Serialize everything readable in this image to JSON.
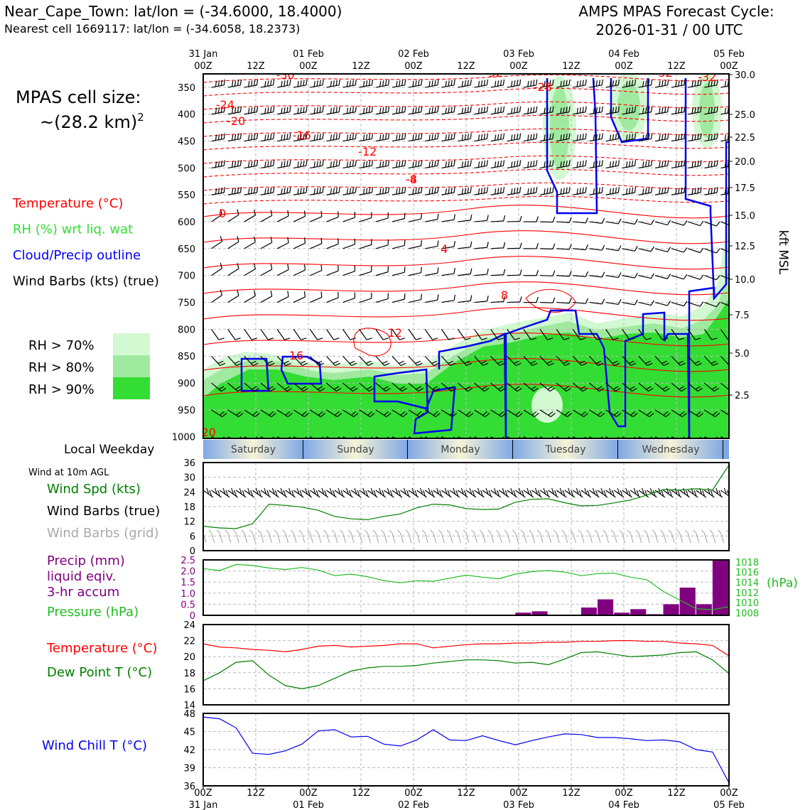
{
  "header": {
    "location": "Near_Cape_Town: lat/lon = (-34.6000, 18.4000)",
    "nearest_cell": "Nearest cell 1669117: lat/lon = (-34.6058, 18.2373)",
    "model_line1": "AMPS MPAS Forecast Cycle:",
    "model_line2": "2026-01-31 / 00 UTC"
  },
  "left_panel": {
    "cell_size_label": "MPAS cell size:",
    "cell_size_value": "~(28.2 km)",
    "cell_size_exp": "2",
    "legend": [
      {
        "text": "Temperature (°C)",
        "color": "#ff0000"
      },
      {
        "text": "RH (%) wrt liq. wat",
        "color": "#33dd33"
      },
      {
        "text": "Cloud/Precip outline",
        "color": "#0000ff"
      },
      {
        "text": "Wind Barbs (kts) (true)",
        "color": "#000000"
      }
    ],
    "rh_levels": [
      {
        "text": "RH > 70%",
        "color": "#d2f9d2"
      },
      {
        "text": "RH > 80%",
        "color": "#a0eaa0"
      },
      {
        "text": "RH > 90%",
        "color": "#33dd33"
      }
    ]
  },
  "time_axis": {
    "ticks": [
      "00Z",
      "12Z",
      "00Z",
      "12Z",
      "00Z",
      "12Z",
      "00Z",
      "12Z",
      "00Z",
      "12Z",
      "00Z"
    ],
    "dates": [
      "31 Jan",
      "01 Feb",
      "02 Feb",
      "03 Feb",
      "04 Feb",
      "05 Feb"
    ]
  },
  "weekday_strip": {
    "label": "Local Weekday",
    "days": [
      "Saturday",
      "Sunday",
      "Monday",
      "Tuesday",
      "Wednesday"
    ]
  },
  "wind_panel": {
    "caption": "Wind at 10m AGL",
    "labels": [
      {
        "text": "Wind Spd (kts)",
        "color": "#008000"
      },
      {
        "text": "Wind Barbs (true)",
        "color": "#000000"
      },
      {
        "text": "Wind Barbs (grid)",
        "color": "#aaaaaa"
      }
    ]
  },
  "precip_panel": {
    "labels": [
      {
        "text": "Precip (mm)",
        "color": "#800080"
      },
      {
        "text": "liquid eqiv.",
        "color": "#800080"
      },
      {
        "text": "3-hr accum",
        "color": "#800080"
      },
      {
        "text": "Pressure (hPa)",
        "color": "#22bb22"
      }
    ],
    "right_unit": "(hPa)"
  },
  "temp_panel": {
    "labels": [
      {
        "text": "Temperature (°C)",
        "color": "#ff0000"
      },
      {
        "text": "Dew Point T (°C)",
        "color": "#008000"
      }
    ]
  },
  "windchill_panel": {
    "labels": [
      {
        "text": "Wind Chill T (°C)",
        "color": "#0000ee"
      }
    ]
  },
  "chart_data": [
    {
      "type": "heatmap",
      "name": "vertical cross-section",
      "x_range_hours": [
        0,
        96
      ],
      "y_left_ticks": [
        350,
        400,
        450,
        500,
        550,
        600,
        650,
        700,
        750,
        800,
        850,
        900,
        950,
        1000
      ],
      "y_right_ticks": [
        30.0,
        25.0,
        22.5,
        20.0,
        17.5,
        15.0,
        12.5,
        10.0,
        7.5,
        5.0,
        2.5
      ],
      "y_right_label": "kft MSL",
      "temperature_contour_labels": [
        {
          "t": 15,
          "p": 105,
          "v": "-30"
        },
        {
          "t": 53,
          "p": 102,
          "v": "-32"
        },
        {
          "t": 84,
          "p": 102,
          "v": "-32"
        },
        {
          "t": 92,
          "p": 108,
          "v": "-32"
        },
        {
          "t": 62,
          "p": 122,
          "v": "-28"
        },
        {
          "t": 4,
          "p": 147,
          "v": "-24"
        },
        {
          "t": 6,
          "p": 170,
          "v": "-20"
        },
        {
          "t": 18,
          "p": 190,
          "v": "-16"
        },
        {
          "t": 30,
          "p": 213,
          "v": "-12"
        },
        {
          "t": 38,
          "p": 252,
          "v": "-8"
        },
        {
          "t": 38,
          "p": 252,
          "v": "-4"
        },
        {
          "t": 3.5,
          "p": 300,
          "v": "0"
        },
        {
          "t": 44,
          "p": 350,
          "v": "4"
        },
        {
          "t": 55,
          "p": 415,
          "v": "8"
        },
        {
          "t": 35,
          "p": 468,
          "v": "12"
        },
        {
          "t": 17,
          "p": 500,
          "v": "16"
        },
        {
          "t": 1,
          "p": 608,
          "v": "20"
        }
      ]
    },
    {
      "type": "line",
      "name": "wind speed 10m",
      "ylim": [
        0,
        36
      ],
      "yticks": [
        0,
        6,
        12,
        18,
        24,
        30,
        36
      ],
      "x": [
        0,
        3,
        6,
        9,
        12,
        15,
        18,
        21,
        24,
        27,
        30,
        33,
        36,
        39,
        42,
        45,
        48,
        51,
        54,
        57,
        60,
        63,
        66,
        69,
        72,
        75,
        78,
        81,
        84,
        87,
        90,
        93,
        96
      ],
      "values": [
        10,
        9.3,
        9,
        11,
        19,
        18.5,
        17.8,
        16.5,
        14,
        13,
        12.7,
        14,
        15,
        17.5,
        19,
        18.7,
        17.2,
        16.8,
        17,
        19.8,
        21,
        21.2,
        19.6,
        18.3,
        18.5,
        19.5,
        20.7,
        22.7,
        25,
        24.8,
        25.3,
        24.8,
        35
      ]
    },
    {
      "type": "bar",
      "name": "precipitation 3-hr accum",
      "ylim": [
        0,
        2.5
      ],
      "yticks": [
        0,
        0.5,
        1.0,
        1.5,
        2.0,
        2.5
      ],
      "y_right_ticks": [
        1008,
        1010,
        1012,
        1014,
        1016,
        1018
      ],
      "bar_start_hours": [
        57,
        60,
        69,
        72,
        75,
        78,
        81,
        84,
        87,
        90,
        93
      ],
      "values": [
        0.12,
        0.18,
        0.35,
        0.72,
        0.12,
        0.28,
        0.05,
        0.5,
        1.25,
        0.5,
        2.5
      ],
      "pressure_x": [
        0,
        3,
        6,
        9,
        12,
        15,
        18,
        21,
        24,
        27,
        30,
        33,
        36,
        39,
        42,
        45,
        48,
        51,
        54,
        57,
        60,
        63,
        66,
        69,
        72,
        75,
        78,
        81,
        84,
        87,
        90,
        93,
        96
      ],
      "pressure_hpa": [
        1016.7,
        1016.3,
        1017.5,
        1017.3,
        1016.8,
        1016.5,
        1016.9,
        1016.4,
        1015.3,
        1015.6,
        1015.1,
        1014.3,
        1013.9,
        1014.3,
        1014.2,
        1014.8,
        1015.4,
        1015.0,
        1014.7,
        1015.6,
        1016.1,
        1016.3,
        1016.0,
        1015.3,
        1015.7,
        1015.8,
        1015.0,
        1014.5,
        1012.2,
        1010.5,
        1008.8,
        1008.6,
        1009.2
      ]
    },
    {
      "type": "line",
      "name": "temperature and dew point",
      "ylim": [
        14,
        24
      ],
      "yticks": [
        14,
        16,
        18,
        20,
        22,
        24
      ],
      "x": [
        0,
        3,
        6,
        9,
        12,
        15,
        18,
        21,
        24,
        27,
        30,
        33,
        36,
        39,
        42,
        45,
        48,
        51,
        54,
        57,
        60,
        63,
        66,
        69,
        72,
        75,
        78,
        81,
        84,
        87,
        90,
        93,
        96
      ],
      "series": [
        {
          "values": [
            21.6,
            21.2,
            21.1,
            20.9,
            20.8,
            20.6,
            20.9,
            21.3,
            21.4,
            21.2,
            21.3,
            21.4,
            21.6,
            21.6,
            21.1,
            21.3,
            21.5,
            21.6,
            21.6,
            21.7,
            21.7,
            21.8,
            21.8,
            21.9,
            21.9,
            22.0,
            22.0,
            21.9,
            21.9,
            21.7,
            21.6,
            21.4,
            20.1
          ]
        },
        {
          "values": [
            17.0,
            18.0,
            19.3,
            19.5,
            17.7,
            16.4,
            16.0,
            16.4,
            17.3,
            18.2,
            18.6,
            18.8,
            18.8,
            18.9,
            19.2,
            19.4,
            19.6,
            19.6,
            19.5,
            19.2,
            19.3,
            19.0,
            19.7,
            20.5,
            20.6,
            20.3,
            20.0,
            20.1,
            20.2,
            20.5,
            20.6,
            19.6,
            17.9
          ]
        }
      ]
    },
    {
      "type": "line",
      "name": "wind chill",
      "ylim": [
        36,
        48
      ],
      "yticks": [
        36,
        39,
        42,
        45,
        48
      ],
      "x": [
        0,
        3,
        6,
        9,
        12,
        15,
        18,
        21,
        24,
        27,
        30,
        33,
        36,
        39,
        42,
        45,
        48,
        51,
        54,
        57,
        60,
        63,
        66,
        69,
        72,
        75,
        78,
        81,
        84,
        87,
        90,
        93,
        96
      ],
      "values": [
        47.4,
        47.1,
        45.6,
        41.4,
        41.2,
        41.8,
        42.9,
        45.1,
        45.3,
        44.1,
        44.2,
        42.9,
        42.6,
        43.6,
        45.3,
        43.6,
        43.5,
        44.3,
        43.5,
        42.8,
        43.5,
        44.1,
        44.6,
        44.5,
        44.0,
        44.0,
        43.8,
        43.5,
        43.6,
        43.3,
        42.0,
        41.6,
        36.5
      ]
    }
  ]
}
